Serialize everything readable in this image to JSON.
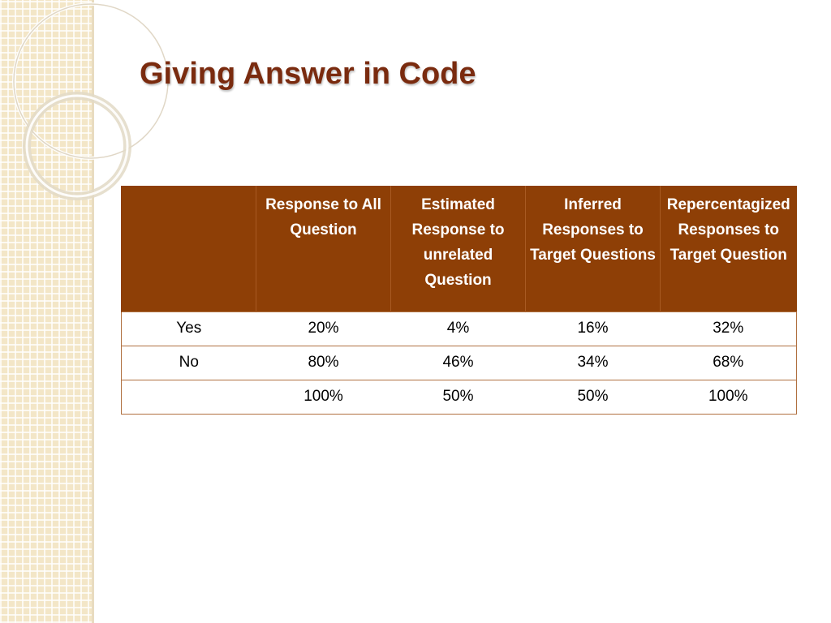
{
  "slide": {
    "title": "Giving Answer in Code"
  },
  "table": {
    "headers": [
      "",
      "Response to All Question",
      "Estimated Response to unrelated Question",
      "Inferred Responses to Target Questions",
      "Repercentagized Responses to Target Question"
    ],
    "rows": [
      [
        "Yes",
        "20%",
        "4%",
        "16%",
        "32%"
      ],
      [
        "No",
        "80%",
        "46%",
        "34%",
        "68%"
      ],
      [
        "",
        "100%",
        "50%",
        "50%",
        "100%"
      ]
    ]
  },
  "colors": {
    "title": "#7a2b0f",
    "header_bg": "#8e3f06",
    "strip": "#f3e6c7"
  }
}
